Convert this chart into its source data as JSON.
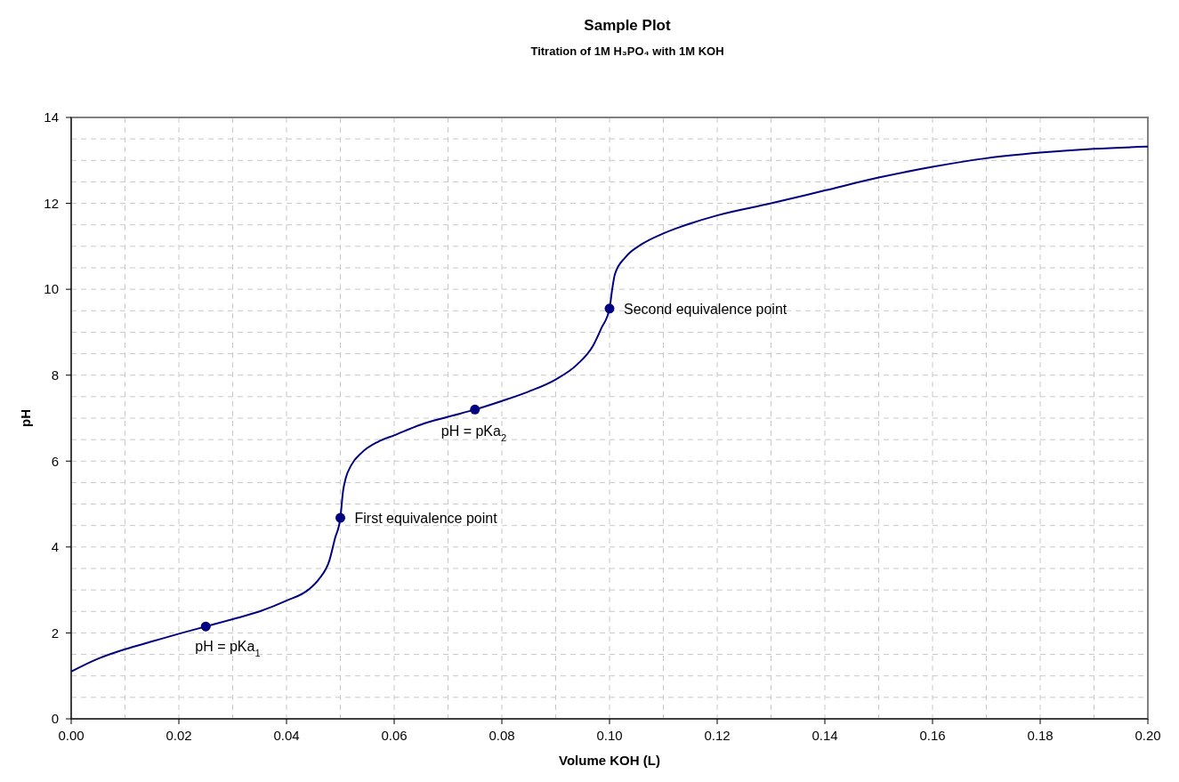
{
  "chart_data": {
    "type": "line",
    "title": "Sample Plot",
    "subtitle": "Titration of 1M H₃PO₄ with 1M KOH",
    "xlabel": "Volume KOH (L)",
    "ylabel": "pH",
    "xlim": [
      0,
      0.2
    ],
    "ylim": [
      0,
      14
    ],
    "xticks": [
      {
        "value": 0,
        "label": "0.00"
      },
      {
        "value": 0.02,
        "label": "0.02"
      },
      {
        "value": 0.04,
        "label": "0.04"
      },
      {
        "value": 0.06,
        "label": "0.06"
      },
      {
        "value": 0.08,
        "label": "0.08"
      },
      {
        "value": 0.1,
        "label": "0.10"
      },
      {
        "value": 0.12,
        "label": "0.12"
      },
      {
        "value": 0.14,
        "label": "0.14"
      },
      {
        "value": 0.16,
        "label": "0.16"
      },
      {
        "value": 0.18,
        "label": "0.18"
      },
      {
        "value": 0.2,
        "label": "0.20"
      }
    ],
    "yticks": [
      0,
      2,
      4,
      6,
      8,
      10,
      12,
      14
    ],
    "grid": true,
    "series": [
      {
        "color": "#000080",
        "marker": "none",
        "x": [
          0,
          0.005,
          0.01,
          0.015,
          0.02,
          0.025,
          0.03,
          0.035,
          0.04,
          0.044,
          0.046,
          0.048,
          0.049,
          0.05,
          0.0505,
          0.051,
          0.052,
          0.054,
          0.057,
          0.06,
          0.065,
          0.07,
          0.075,
          0.08,
          0.085,
          0.09,
          0.094,
          0.097,
          0.0985,
          0.1,
          0.1005,
          0.101,
          0.103,
          0.106,
          0.11,
          0.115,
          0.12,
          0.13,
          0.14,
          0.15,
          0.16,
          0.17,
          0.18,
          0.19,
          0.2
        ],
        "values": [
          1.1,
          1.4,
          1.62,
          1.8,
          1.98,
          2.15,
          2.32,
          2.5,
          2.75,
          3.0,
          3.25,
          3.7,
          4.2,
          4.68,
          5.3,
          5.6,
          5.9,
          6.2,
          6.45,
          6.6,
          6.85,
          7.03,
          7.2,
          7.4,
          7.62,
          7.9,
          8.25,
          8.7,
          9.1,
          9.55,
          10.0,
          10.35,
          10.75,
          11.05,
          11.3,
          11.53,
          11.72,
          12.0,
          12.3,
          12.6,
          12.85,
          13.05,
          13.18,
          13.27,
          13.32
        ]
      },
      {
        "type": "scatter",
        "color": "#000080",
        "marker": "circle",
        "x": [
          0.025,
          0.05,
          0.075,
          0.1
        ],
        "values": [
          2.15,
          4.68,
          7.2,
          9.55
        ]
      }
    ],
    "annotations": [
      {
        "text": "pH = pKa$_{1}$",
        "x": 0.025,
        "y": 2.15
      },
      {
        "text": "First equivalence point",
        "x": 0.05,
        "y": 4.68
      },
      {
        "text": "pH = pKa$_{2}$",
        "x": 0.075,
        "y": 7.2
      },
      {
        "text": "Second equivalence point",
        "x": 0.1,
        "y": 9.55
      }
    ]
  }
}
